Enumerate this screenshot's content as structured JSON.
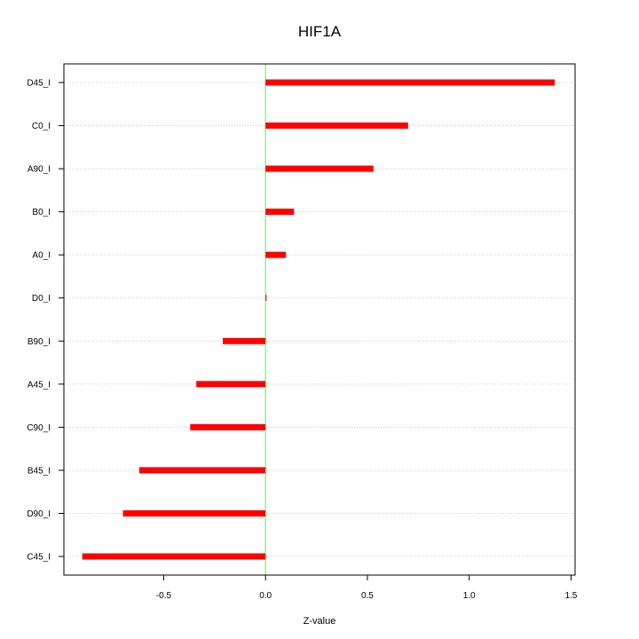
{
  "chart_data": {
    "type": "bar",
    "orientation": "horizontal",
    "title": "HIF1A",
    "xlabel": "Z-value",
    "ylabel": "",
    "categories": [
      "D45_I",
      "C0_I",
      "A90_I",
      "B0_I",
      "A0_I",
      "D0_I",
      "B90_I",
      "A45_I",
      "C90_I",
      "B45_I",
      "D90_I",
      "C45_I"
    ],
    "values": [
      1.42,
      0.7,
      0.53,
      0.14,
      0.1,
      0.005,
      -0.21,
      -0.34,
      -0.37,
      -0.62,
      -0.7,
      -0.9
    ],
    "xlim": [
      -0.99,
      1.52
    ],
    "xticks": [
      -0.5,
      0.0,
      0.5,
      1.0,
      1.5
    ],
    "xtick_labels": [
      "-0.5",
      "0.0",
      "0.5",
      "1.0",
      "1.5"
    ],
    "reference_line": 0,
    "grid": "horizontal dotted",
    "colors": {
      "bar": "#ff0000",
      "reference_line": "#7fe87f",
      "grid": "#cccccc",
      "axis": "#000000"
    }
  }
}
